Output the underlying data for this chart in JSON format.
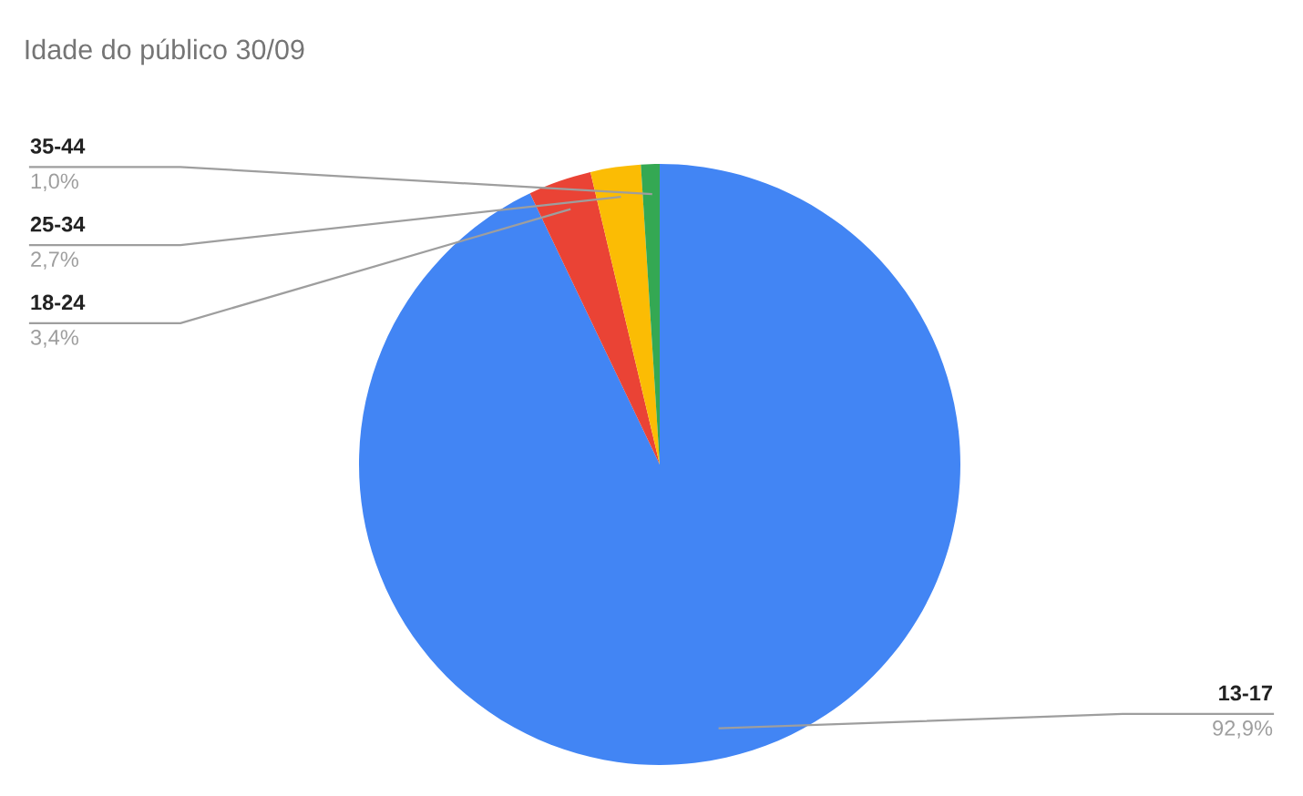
{
  "chart_data": {
    "type": "pie",
    "title": "Idade do público 30/09",
    "categories": [
      "13-17",
      "18-24",
      "25-34",
      "35-44"
    ],
    "values": [
      92.9,
      3.4,
      2.7,
      1.0
    ],
    "colors": [
      "#4285f4",
      "#ea4335",
      "#fbbc04",
      "#34a853"
    ],
    "value_labels": [
      "92,9%",
      "3,4%",
      "2,7%",
      "1,0%"
    ]
  }
}
